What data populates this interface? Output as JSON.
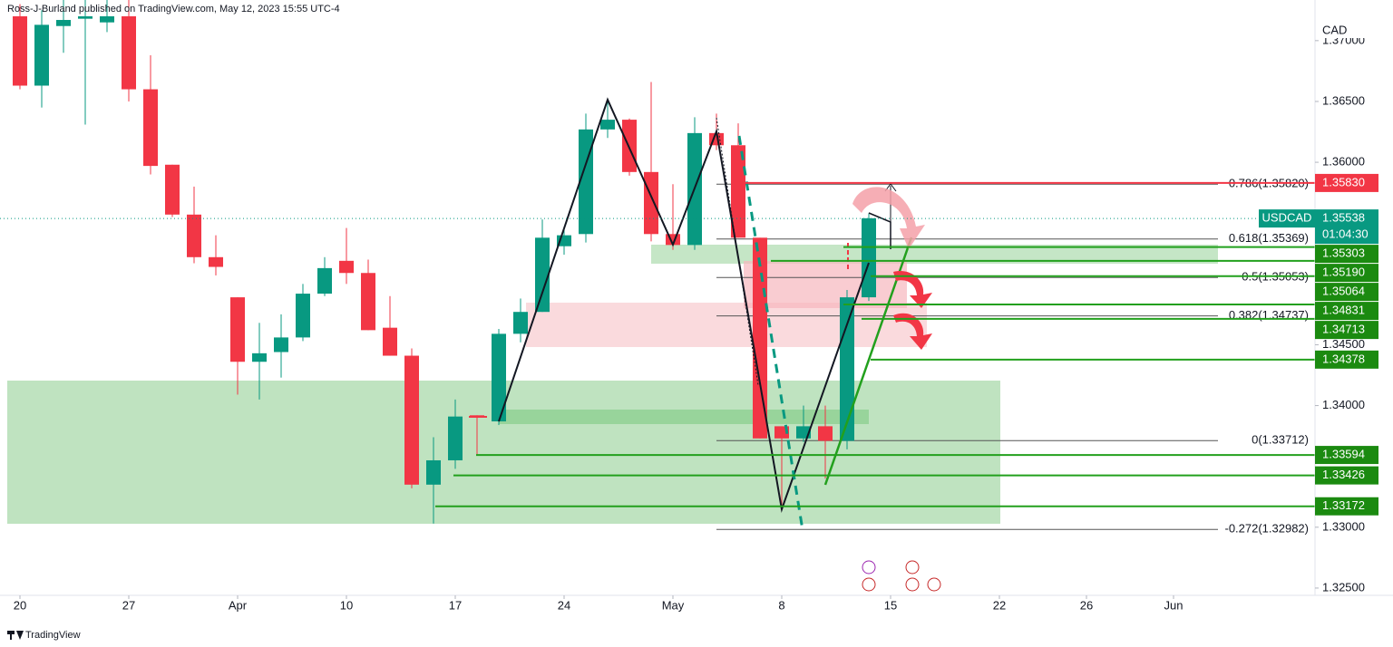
{
  "chart_data": {
    "type": "candlestick",
    "header": "Ross-J-Burland published on TradingView.com, May 12, 2023 15:55 UTC-4",
    "currency": "CAD",
    "footer": "TradingView",
    "symbol": "USDCAD",
    "last": {
      "value": 1.35538,
      "label": "1.35538"
    },
    "countdown": "01:04:30",
    "up_color": "#089981",
    "down_color": "#f23645",
    "open": [
      1.372,
      1.3663,
      1.3712,
      1.3718,
      1.3715,
      1.372,
      1.366,
      1.3598,
      1.3557,
      1.3522,
      1.3489,
      1.3436,
      1.3444,
      1.3456,
      1.3492,
      1.3519,
      1.3509,
      1.3464,
      1.3441,
      1.3335,
      1.3355,
      1.3392,
      1.3387,
      1.3459,
      1.3477,
      1.3531,
      1.3541,
      1.3627,
      1.3635,
      1.3592,
      1.3541,
      1.3532,
      1.3624,
      1.3614,
      1.3538,
      1.3383,
      1.3373,
      1.3383,
      1.3371,
      1.3489
    ],
    "high": [
      1.373,
      1.3725,
      1.3735,
      1.3735,
      1.3735,
      1.3735,
      1.3688,
      1.3598,
      1.358,
      1.354,
      1.3489,
      1.3468,
      1.3475,
      1.35,
      1.3522,
      1.3546,
      1.352,
      1.349,
      1.3447,
      1.3374,
      1.3405,
      1.3392,
      1.3463,
      1.3488,
      1.3553,
      1.3545,
      1.364,
      1.365,
      1.3636,
      1.3666,
      1.3582,
      1.3637,
      1.364,
      1.3632,
      1.3538,
      1.3383,
      1.34,
      1.34,
      1.3495,
      1.3558
    ],
    "low": [
      1.366,
      1.3645,
      1.369,
      1.3631,
      1.3707,
      1.365,
      1.359,
      1.3555,
      1.3517,
      1.3507,
      1.3409,
      1.3405,
      1.3423,
      1.3453,
      1.349,
      1.35,
      1.3462,
      1.3441,
      1.3332,
      1.3303,
      1.3348,
      1.3359,
      1.3384,
      1.3452,
      1.3477,
      1.3524,
      1.3534,
      1.362,
      1.3589,
      1.3535,
      1.3528,
      1.3528,
      1.361,
      1.3538,
      1.3373,
      1.3318,
      1.337,
      1.334,
      1.3364,
      1.3486
    ],
    "close": [
      1.3663,
      1.3713,
      1.3717,
      1.372,
      1.372,
      1.366,
      1.3597,
      1.3557,
      1.3522,
      1.3514,
      1.3436,
      1.3443,
      1.3456,
      1.3492,
      1.3513,
      1.3509,
      1.3462,
      1.3441,
      1.3335,
      1.3355,
      1.3391,
      1.339,
      1.3459,
      1.3477,
      1.3538,
      1.354,
      1.3627,
      1.3635,
      1.3592,
      1.3541,
      1.3532,
      1.3624,
      1.3614,
      1.3538,
      1.3373,
      1.3373,
      1.3383,
      1.3371,
      1.3489,
      1.3554
    ],
    "xlim": [
      -0.917,
      59.5
    ],
    "ylim": [
      1.3244,
      1.37334
    ],
    "xticks": [
      {
        "value": 0,
        "label": "20"
      },
      {
        "value": 5,
        "label": "27"
      },
      {
        "value": 10,
        "label": "Apr"
      },
      {
        "value": 15,
        "label": "10"
      },
      {
        "value": 20,
        "label": "17"
      },
      {
        "value": 25,
        "label": "24"
      },
      {
        "value": 30,
        "label": "May"
      },
      {
        "value": 35,
        "label": "8"
      },
      {
        "value": 40,
        "label": "15"
      },
      {
        "value": 45,
        "label": "22"
      },
      {
        "value": 49,
        "label": "26"
      },
      {
        "value": 53,
        "label": "Jun"
      }
    ],
    "yticks": [
      {
        "value": 1.37,
        "label": "1.37000"
      },
      {
        "value": 1.365,
        "label": "1.36500"
      },
      {
        "value": 1.36,
        "label": "1.36000"
      },
      {
        "value": 1.345,
        "label": "1.34500"
      },
      {
        "value": 1.34,
        "label": "1.34000"
      },
      {
        "value": 1.33,
        "label": "1.33000"
      },
      {
        "value": 1.325,
        "label": "1.32500"
      }
    ],
    "fib_levels": [
      {
        "value": 1.3582,
        "label": "0.786(1.35820)"
      },
      {
        "value": 1.35369,
        "label": "0.618(1.35369)"
      },
      {
        "value": 1.35053,
        "label": "0.5(1.35053)"
      },
      {
        "value": 1.34737,
        "label": "0.382(1.34737)"
      },
      {
        "value": 1.33712,
        "label": "0(1.33712)"
      },
      {
        "value": 1.32982,
        "label": "-0.272(1.32982)"
      }
    ],
    "resistance": {
      "value": 1.3583,
      "label": "1.35830",
      "color": "#f23645"
    },
    "levels_color": "#089981",
    "levels": [
      {
        "value": 1.35303,
        "label": "1.35303"
      },
      {
        "value": 1.3519,
        "label": "1.35190"
      },
      {
        "value": 1.35064,
        "label": "1.35064"
      },
      {
        "value": 1.34831,
        "label": "1.34831"
      },
      {
        "value": 1.34713,
        "label": "1.34713"
      },
      {
        "value": 1.34378,
        "label": "1.34378"
      },
      {
        "value": 1.33594,
        "label": "1.33594"
      },
      {
        "value": 1.33426,
        "label": "1.33426"
      },
      {
        "value": 1.33172,
        "label": "1.33172"
      }
    ]
  }
}
